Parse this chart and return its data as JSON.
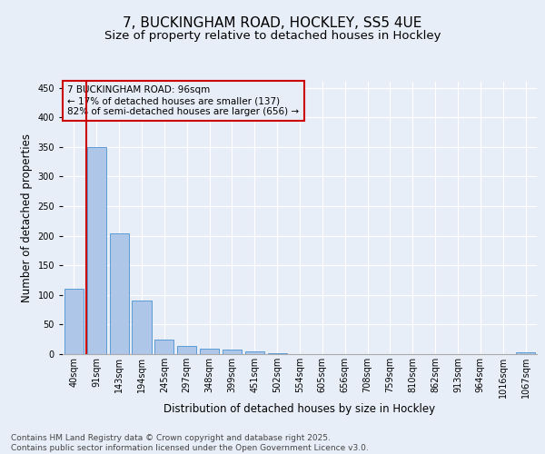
{
  "title1": "7, BUCKINGHAM ROAD, HOCKLEY, SS5 4UE",
  "title2": "Size of property relative to detached houses in Hockley",
  "xlabel": "Distribution of detached houses by size in Hockley",
  "ylabel": "Number of detached properties",
  "categories": [
    "40sqm",
    "91sqm",
    "143sqm",
    "194sqm",
    "245sqm",
    "297sqm",
    "348sqm",
    "399sqm",
    "451sqm",
    "502sqm",
    "554sqm",
    "605sqm",
    "656sqm",
    "708sqm",
    "759sqm",
    "810sqm",
    "862sqm",
    "913sqm",
    "964sqm",
    "1016sqm",
    "1067sqm"
  ],
  "values": [
    110,
    350,
    204,
    90,
    24,
    14,
    9,
    8,
    5,
    1,
    0,
    0,
    0,
    0,
    0,
    0,
    0,
    0,
    0,
    0,
    3
  ],
  "bar_color": "#aec6e8",
  "bar_edge_color": "#5b9bd5",
  "vline_color": "#cc0000",
  "annotation_text": "7 BUCKINGHAM ROAD: 96sqm\n← 17% of detached houses are smaller (137)\n82% of semi-detached houses are larger (656) →",
  "annotation_box_color": "#cc0000",
  "ylim": [
    0,
    460
  ],
  "yticks": [
    0,
    50,
    100,
    150,
    200,
    250,
    300,
    350,
    400,
    450
  ],
  "background_color": "#e8eef8",
  "grid_color": "#ffffff",
  "footer": "Contains HM Land Registry data © Crown copyright and database right 2025.\nContains public sector information licensed under the Open Government Licence v3.0.",
  "title1_fontsize": 11,
  "title2_fontsize": 9.5,
  "xlabel_fontsize": 8.5,
  "ylabel_fontsize": 8.5,
  "tick_fontsize": 7,
  "footer_fontsize": 6.5,
  "annot_fontsize": 7.5
}
